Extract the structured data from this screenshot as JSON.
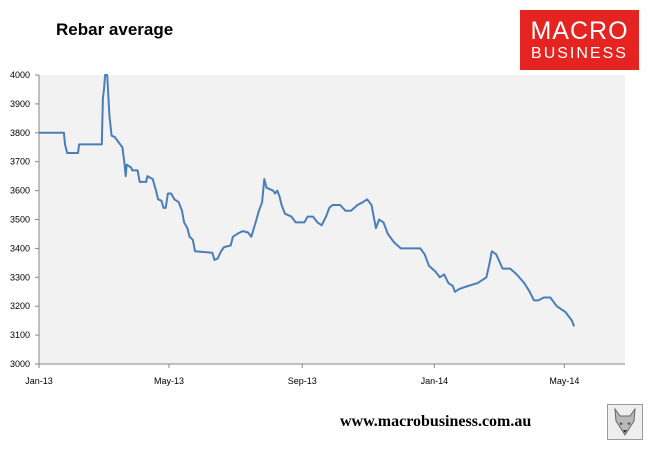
{
  "header": {
    "title": "Rebar average"
  },
  "logo": {
    "line1": "MACRO",
    "line2": "BUSINESS",
    "bg_color": "#e52421",
    "text_color": "#ffffff"
  },
  "footer": {
    "url": "www.macrobusiness.com.au",
    "emblem_icon": "wolf-head-icon"
  },
  "colors": {
    "plot_background": "#f2f2f2",
    "line": "#4a7ebb"
  },
  "chart_data": {
    "type": "line",
    "title": "Rebar average",
    "xlabel": "",
    "ylabel": "",
    "ylim": [
      3000,
      4000
    ],
    "yticks": [
      "3000",
      "3100",
      "3200",
      "3300",
      "3400",
      "3500",
      "3600",
      "3700",
      "3800",
      "3900",
      "4000"
    ],
    "xlim": [
      "2013-01-01",
      "2014-06-26"
    ],
    "xticks": [
      {
        "date": "2013-01-01",
        "label": "Jan-13"
      },
      {
        "date": "2013-05-01",
        "label": "May-13"
      },
      {
        "date": "2013-09-01",
        "label": "Sep-13"
      },
      {
        "date": "2014-01-01",
        "label": "Jan-14"
      },
      {
        "date": "2014-05-01",
        "label": "May-14"
      }
    ],
    "grid": false,
    "legend": "none",
    "series": [
      {
        "points": [
          [
            "2013-01-01",
            3800
          ],
          [
            "2013-01-24",
            3800
          ],
          [
            "2013-01-25",
            3760
          ],
          [
            "2013-01-27",
            3730
          ],
          [
            "2013-02-06",
            3730
          ],
          [
            "2013-02-07",
            3760
          ],
          [
            "2013-02-28",
            3760
          ],
          [
            "2013-03-01",
            3920
          ],
          [
            "2013-03-02",
            3950
          ],
          [
            "2013-03-03",
            4000
          ],
          [
            "2013-03-05",
            4000
          ],
          [
            "2013-03-07",
            3860
          ],
          [
            "2013-03-09",
            3790
          ],
          [
            "2013-03-12",
            3785
          ],
          [
            "2013-03-17",
            3760
          ],
          [
            "2013-03-19",
            3750
          ],
          [
            "2013-03-21",
            3690
          ],
          [
            "2013-03-22",
            3650
          ],
          [
            "2013-03-23",
            3690
          ],
          [
            "2013-03-27",
            3680
          ],
          [
            "2013-03-28",
            3670
          ],
          [
            "2013-04-02",
            3670
          ],
          [
            "2013-04-04",
            3630
          ],
          [
            "2013-04-10",
            3630
          ],
          [
            "2013-04-11",
            3650
          ],
          [
            "2013-04-16",
            3640
          ],
          [
            "2013-04-19",
            3600
          ],
          [
            "2013-04-21",
            3570
          ],
          [
            "2013-04-24",
            3565
          ],
          [
            "2013-04-26",
            3540
          ],
          [
            "2013-04-28",
            3540
          ],
          [
            "2013-04-30",
            3590
          ],
          [
            "2013-05-03",
            3590
          ],
          [
            "2013-05-06",
            3570
          ],
          [
            "2013-05-10",
            3560
          ],
          [
            "2013-05-13",
            3530
          ],
          [
            "2013-05-15",
            3490
          ],
          [
            "2013-05-18",
            3470
          ],
          [
            "2013-05-20",
            3440
          ],
          [
            "2013-05-23",
            3430
          ],
          [
            "2013-05-25",
            3390
          ],
          [
            "2013-06-10",
            3385
          ],
          [
            "2013-06-12",
            3360
          ],
          [
            "2013-06-15",
            3365
          ],
          [
            "2013-06-18",
            3390
          ],
          [
            "2013-06-21",
            3405
          ],
          [
            "2013-06-27",
            3410
          ],
          [
            "2013-06-29",
            3440
          ],
          [
            "2013-07-03",
            3450
          ],
          [
            "2013-07-08",
            3460
          ],
          [
            "2013-07-13",
            3455
          ],
          [
            "2013-07-16",
            3440
          ],
          [
            "2013-07-20",
            3490
          ],
          [
            "2013-07-23",
            3530
          ],
          [
            "2013-07-26",
            3560
          ],
          [
            "2013-07-28",
            3640
          ],
          [
            "2013-07-30",
            3610
          ],
          [
            "2013-08-05",
            3600
          ],
          [
            "2013-08-07",
            3590
          ],
          [
            "2013-08-09",
            3600
          ],
          [
            "2013-08-11",
            3580
          ],
          [
            "2013-08-13",
            3550
          ],
          [
            "2013-08-16",
            3520
          ],
          [
            "2013-08-22",
            3510
          ],
          [
            "2013-08-26",
            3490
          ],
          [
            "2013-09-03",
            3490
          ],
          [
            "2013-09-06",
            3510
          ],
          [
            "2013-09-11",
            3510
          ],
          [
            "2013-09-15",
            3490
          ],
          [
            "2013-09-19",
            3480
          ],
          [
            "2013-09-23",
            3510
          ],
          [
            "2013-09-26",
            3540
          ],
          [
            "2013-09-29",
            3550
          ],
          [
            "2013-10-06",
            3550
          ],
          [
            "2013-10-11",
            3530
          ],
          [
            "2013-10-16",
            3530
          ],
          [
            "2013-10-22",
            3550
          ],
          [
            "2013-10-27",
            3560
          ],
          [
            "2013-10-31",
            3570
          ],
          [
            "2013-11-04",
            3550
          ],
          [
            "2013-11-06",
            3510
          ],
          [
            "2013-11-08",
            3470
          ],
          [
            "2013-11-11",
            3500
          ],
          [
            "2013-11-15",
            3490
          ],
          [
            "2013-11-19",
            3450
          ],
          [
            "2013-11-25",
            3420
          ],
          [
            "2013-12-01",
            3400
          ],
          [
            "2013-12-14",
            3400
          ],
          [
            "2013-12-19",
            3400
          ],
          [
            "2013-12-23",
            3380
          ],
          [
            "2013-12-27",
            3340
          ],
          [
            "2014-01-02",
            3320
          ],
          [
            "2014-01-06",
            3300
          ],
          [
            "2014-01-10",
            3310
          ],
          [
            "2014-01-14",
            3280
          ],
          [
            "2014-01-18",
            3270
          ],
          [
            "2014-01-20",
            3250
          ],
          [
            "2014-01-24",
            3260
          ],
          [
            "2014-02-01",
            3270
          ],
          [
            "2014-02-10",
            3280
          ],
          [
            "2014-02-18",
            3300
          ],
          [
            "2014-02-21",
            3350
          ],
          [
            "2014-02-23",
            3390
          ],
          [
            "2014-02-27",
            3380
          ],
          [
            "2014-03-05",
            3330
          ],
          [
            "2014-03-12",
            3330
          ],
          [
            "2014-03-18",
            3310
          ],
          [
            "2014-03-25",
            3280
          ],
          [
            "2014-03-30",
            3250
          ],
          [
            "2014-04-03",
            3220
          ],
          [
            "2014-04-07",
            3220
          ],
          [
            "2014-04-12",
            3230
          ],
          [
            "2014-04-18",
            3230
          ],
          [
            "2014-04-24",
            3200
          ],
          [
            "2014-05-02",
            3180
          ],
          [
            "2014-05-08",
            3150
          ],
          [
            "2014-05-10",
            3130
          ]
        ]
      }
    ]
  }
}
